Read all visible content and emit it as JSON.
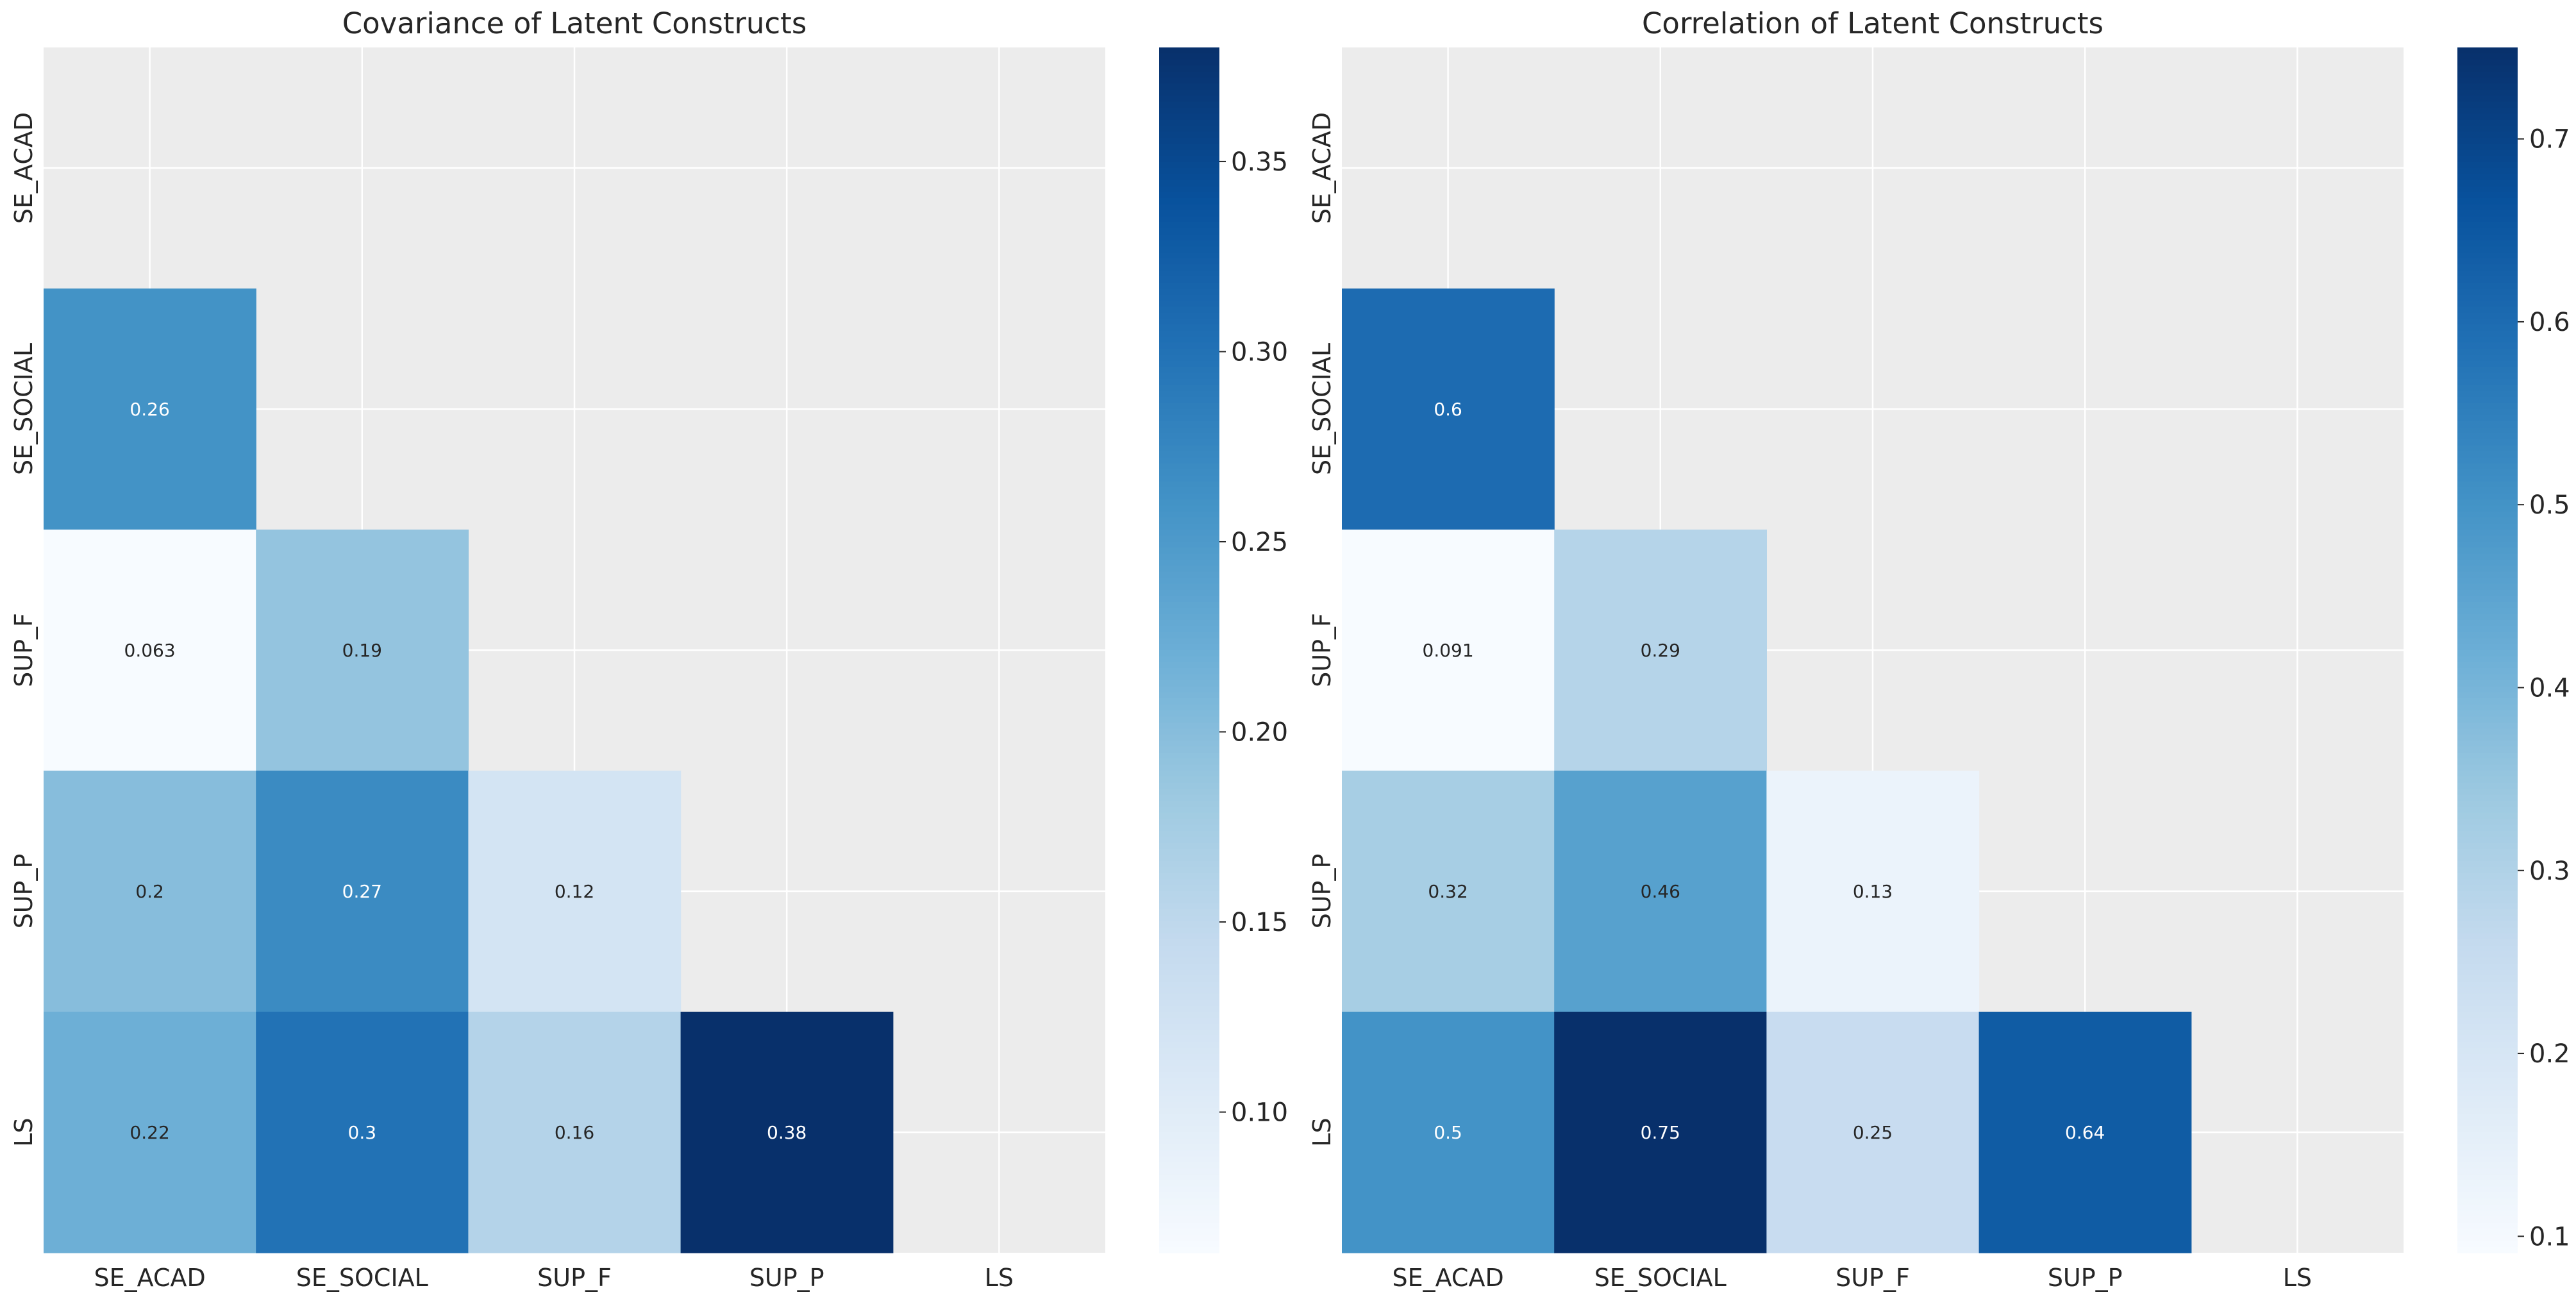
{
  "chart_data": [
    {
      "type": "heatmap",
      "title": "Covariance of Latent Constructs",
      "x_labels": [
        "SE_ACAD",
        "SE_SOCIAL",
        "SUP_F",
        "SUP_P",
        "LS"
      ],
      "y_labels": [
        "SE_ACAD",
        "SE_SOCIAL",
        "SUP_F",
        "SUP_P",
        "LS"
      ],
      "mask": "upper triangle including diagonal",
      "colormap": "Blues",
      "vmin": 0.063,
      "vmax": 0.38,
      "colorbar_ticks": [
        0.1,
        0.15,
        0.2,
        0.25,
        0.3,
        0.35
      ],
      "colorbar_tick_labels": [
        "0.10",
        "0.15",
        "0.20",
        "0.25",
        "0.30",
        "0.35"
      ],
      "cells": [
        {
          "row": 1,
          "col": 0,
          "value": 0.26,
          "label": "0.26"
        },
        {
          "row": 2,
          "col": 0,
          "value": 0.063,
          "label": "0.063"
        },
        {
          "row": 2,
          "col": 1,
          "value": 0.19,
          "label": "0.19"
        },
        {
          "row": 3,
          "col": 0,
          "value": 0.2,
          "label": "0.2"
        },
        {
          "row": 3,
          "col": 1,
          "value": 0.27,
          "label": "0.27"
        },
        {
          "row": 3,
          "col": 2,
          "value": 0.12,
          "label": "0.12"
        },
        {
          "row": 4,
          "col": 0,
          "value": 0.22,
          "label": "0.22"
        },
        {
          "row": 4,
          "col": 1,
          "value": 0.3,
          "label": "0.3"
        },
        {
          "row": 4,
          "col": 2,
          "value": 0.16,
          "label": "0.16"
        },
        {
          "row": 4,
          "col": 3,
          "value": 0.38,
          "label": "0.38"
        }
      ],
      "grid": true
    },
    {
      "type": "heatmap",
      "title": "Correlation of Latent Constructs",
      "x_labels": [
        "SE_ACAD",
        "SE_SOCIAL",
        "SUP_F",
        "SUP_P",
        "LS"
      ],
      "y_labels": [
        "SE_ACAD",
        "SE_SOCIAL",
        "SUP_F",
        "SUP_P",
        "LS"
      ],
      "mask": "upper triangle including diagonal",
      "colormap": "Blues",
      "vmin": 0.091,
      "vmax": 0.75,
      "colorbar_ticks": [
        0.1,
        0.2,
        0.3,
        0.4,
        0.5,
        0.6,
        0.7
      ],
      "colorbar_tick_labels": [
        "0.1",
        "0.2",
        "0.3",
        "0.4",
        "0.5",
        "0.6",
        "0.7"
      ],
      "cells": [
        {
          "row": 1,
          "col": 0,
          "value": 0.6,
          "label": "0.6"
        },
        {
          "row": 2,
          "col": 0,
          "value": 0.091,
          "label": "0.091"
        },
        {
          "row": 2,
          "col": 1,
          "value": 0.29,
          "label": "0.29"
        },
        {
          "row": 3,
          "col": 0,
          "value": 0.32,
          "label": "0.32"
        },
        {
          "row": 3,
          "col": 1,
          "value": 0.46,
          "label": "0.46"
        },
        {
          "row": 3,
          "col": 2,
          "value": 0.13,
          "label": "0.13"
        },
        {
          "row": 4,
          "col": 0,
          "value": 0.5,
          "label": "0.5"
        },
        {
          "row": 4,
          "col": 1,
          "value": 0.75,
          "label": "0.75"
        },
        {
          "row": 4,
          "col": 2,
          "value": 0.25,
          "label": "0.25"
        },
        {
          "row": 4,
          "col": 3,
          "value": 0.64,
          "label": "0.64"
        }
      ],
      "grid": true
    }
  ],
  "colors": {
    "background": "#ffffff",
    "axes_background": "#ececec",
    "grid": "#ffffff",
    "text": "#262626",
    "blues": [
      "#f7fbff",
      "#deebf7",
      "#c6dbef",
      "#9ecae1",
      "#6baed6",
      "#4292c6",
      "#2171b5",
      "#08519c",
      "#08306b"
    ]
  }
}
